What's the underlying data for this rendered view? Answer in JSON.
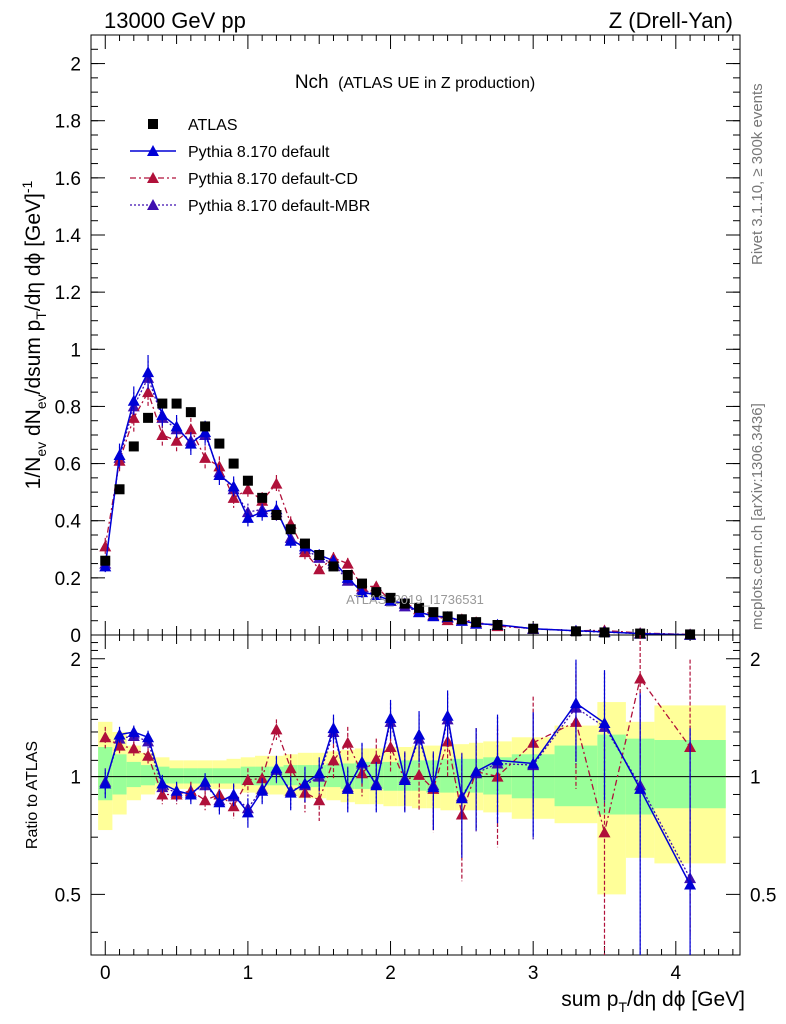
{
  "header": {
    "left": "13000 GeV pp",
    "right": "Z (Drell-Yan)"
  },
  "side_text": {
    "rivet": "Rivet 3.1.10, ≥ 300k events",
    "mcplots": "mcplots.cern.ch [arXiv:1306.3436]"
  },
  "watermark": "ATLAS_2019_I1736531",
  "colors": {
    "atlas": "#000000",
    "default": "#0000d6",
    "cd": "#b0103a",
    "mbr": "#3f0fb0",
    "band_yellow": "#ffff99",
    "band_green": "#99ff99"
  },
  "chart_data": [
    {
      "type": "scatter",
      "panel": "main",
      "title_main": "Nch",
      "title_sub": "(ATLAS UE in Z production)",
      "ylabel": "1/N_ev dN_ev/dsum p_T/dη dϕ [GeV]^-1",
      "ylabel_parts": [
        "1/N",
        "ev",
        " dN",
        "ev",
        "/dsum p",
        "T",
        "/dη dϕ  [GeV]",
        "-1"
      ],
      "xlim": [
        -0.1,
        4.45
      ],
      "ylim": [
        0,
        2.1
      ],
      "yticks": [
        0,
        0.2,
        0.4,
        0.6,
        0.8,
        1,
        1.2,
        1.4,
        1.6,
        1.8,
        2
      ],
      "ytick_labels": [
        "0",
        "0.2",
        "0.4",
        "0.6",
        "0.8",
        "1",
        "1.2",
        "1.4",
        "1.6",
        "1.8",
        "2"
      ],
      "legend": [
        "ATLAS",
        "Pythia 8.170 default",
        "Pythia 8.170 default-CD",
        "Pythia 8.170 default-MBR"
      ],
      "x": [
        0.0,
        0.1,
        0.2,
        0.3,
        0.4,
        0.5,
        0.6,
        0.7,
        0.8,
        0.9,
        1.0,
        1.1,
        1.2,
        1.3,
        1.4,
        1.5,
        1.6,
        1.7,
        1.8,
        1.9,
        2.0,
        2.1,
        2.2,
        2.3,
        2.4,
        2.5,
        2.6,
        2.75,
        3.0,
        3.3,
        3.5,
        3.75,
        4.1
      ],
      "series": [
        {
          "name": "ATLAS",
          "values": [
            0.26,
            0.51,
            0.66,
            0.76,
            0.81,
            0.81,
            0.78,
            0.73,
            0.67,
            0.6,
            0.54,
            0.48,
            0.42,
            0.37,
            0.32,
            0.28,
            0.24,
            0.21,
            0.18,
            0.15,
            0.13,
            0.11,
            0.095,
            0.08,
            0.065,
            0.055,
            0.045,
            0.035,
            0.022,
            0.013,
            0.009,
            0.005,
            0.002
          ]
        },
        {
          "name": "Pythia 8.170 default",
          "values": [
            0.24,
            0.63,
            0.82,
            0.92,
            0.77,
            0.73,
            0.67,
            0.71,
            0.56,
            0.52,
            0.41,
            0.43,
            0.44,
            0.33,
            0.31,
            0.28,
            0.26,
            0.2,
            0.15,
            0.14,
            0.12,
            0.11,
            0.08,
            0.066,
            0.063,
            0.05,
            0.04,
            0.036,
            0.022,
            0.015,
            0.011,
            0.005,
            0.001
          ],
          "errors": [
            0.02,
            0.04,
            0.05,
            0.06,
            0.04,
            0.04,
            0.04,
            0.04,
            0.035,
            0.035,
            0.03,
            0.03,
            0.03,
            0.025,
            0.025,
            0.02,
            0.02,
            0.02,
            0.02,
            0.015,
            0.015,
            0.015,
            0.012,
            0.01,
            0.01,
            0.01,
            0.008,
            0.008,
            0.006,
            0.005,
            0.004,
            0.003,
            0.002
          ]
        },
        {
          "name": "Pythia 8.170 default-CD",
          "values": [
            0.31,
            0.61,
            0.76,
            0.85,
            0.7,
            0.68,
            0.72,
            0.62,
            0.59,
            0.48,
            0.51,
            0.47,
            0.53,
            0.39,
            0.29,
            0.23,
            0.27,
            0.25,
            0.17,
            0.17,
            0.12,
            0.11,
            0.09,
            0.07,
            0.052,
            0.055,
            0.045,
            0.031,
            0.022,
            0.015,
            0.016,
            0.007,
            0.002
          ],
          "errors": [
            0.03,
            0.04,
            0.05,
            0.05,
            0.04,
            0.04,
            0.04,
            0.04,
            0.035,
            0.035,
            0.03,
            0.03,
            0.03,
            0.025,
            0.025,
            0.02,
            0.02,
            0.02,
            0.02,
            0.015,
            0.015,
            0.015,
            0.012,
            0.01,
            0.01,
            0.01,
            0.008,
            0.008,
            0.006,
            0.005,
            0.004,
            0.003,
            0.002
          ]
        },
        {
          "name": "Pythia 8.170 default-MBR",
          "values": [
            0.25,
            0.62,
            0.8,
            0.9,
            0.76,
            0.72,
            0.68,
            0.7,
            0.57,
            0.51,
            0.43,
            0.44,
            0.43,
            0.34,
            0.3,
            0.27,
            0.25,
            0.19,
            0.16,
            0.14,
            0.12,
            0.1,
            0.08,
            0.066,
            0.06,
            0.05,
            0.04,
            0.035,
            0.022,
            0.014,
            0.01,
            0.005,
            0.001
          ],
          "errors": [
            0.02,
            0.04,
            0.05,
            0.06,
            0.04,
            0.04,
            0.04,
            0.04,
            0.035,
            0.035,
            0.03,
            0.03,
            0.03,
            0.025,
            0.025,
            0.02,
            0.02,
            0.02,
            0.02,
            0.015,
            0.015,
            0.015,
            0.012,
            0.01,
            0.01,
            0.01,
            0.008,
            0.008,
            0.006,
            0.005,
            0.004,
            0.003,
            0.002
          ]
        }
      ]
    },
    {
      "type": "scatter",
      "panel": "ratio",
      "ylabel": "Ratio to ATLAS",
      "xlabel": "sum p_T/dη dϕ [GeV]",
      "xlabel_parts": [
        "sum p",
        "T",
        "/dη dϕ [GeV]"
      ],
      "xlim": [
        -0.1,
        4.45
      ],
      "ylim": [
        0.35,
        2.3
      ],
      "yticks": [
        0.5,
        1,
        2
      ],
      "ytick_labels": [
        "0.5",
        "1",
        "2"
      ],
      "xticks": [
        0,
        1,
        2,
        3,
        4
      ],
      "xtick_labels": [
        "0",
        "1",
        "2",
        "3",
        "4"
      ],
      "bands": [
        {
          "x0": -0.05,
          "x1": 0.05,
          "green": [
            0.87,
            1.19
          ],
          "yellow": [
            0.73,
            1.38
          ]
        },
        {
          "x0": 0.05,
          "x1": 0.15,
          "green": [
            0.9,
            1.14
          ],
          "yellow": [
            0.8,
            1.3
          ]
        },
        {
          "x0": 0.15,
          "x1": 0.25,
          "green": [
            0.94,
            1.09
          ],
          "yellow": [
            0.87,
            1.2
          ]
        },
        {
          "x0": 0.25,
          "x1": 0.35,
          "green": [
            0.95,
            1.07
          ],
          "yellow": [
            0.9,
            1.15
          ]
        },
        {
          "x0": 0.35,
          "x1": 0.45,
          "green": [
            0.96,
            1.06
          ],
          "yellow": [
            0.92,
            1.12
          ]
        },
        {
          "x0": 0.45,
          "x1": 0.55,
          "green": [
            0.96,
            1.05
          ],
          "yellow": [
            0.93,
            1.1
          ]
        },
        {
          "x0": 0.55,
          "x1": 0.65,
          "green": [
            0.96,
            1.05
          ],
          "yellow": [
            0.93,
            1.1
          ]
        },
        {
          "x0": 0.65,
          "x1": 0.75,
          "green": [
            0.96,
            1.05
          ],
          "yellow": [
            0.93,
            1.1
          ]
        },
        {
          "x0": 0.75,
          "x1": 0.85,
          "green": [
            0.96,
            1.05
          ],
          "yellow": [
            0.93,
            1.1
          ]
        },
        {
          "x0": 0.85,
          "x1": 0.95,
          "green": [
            0.96,
            1.05
          ],
          "yellow": [
            0.93,
            1.11
          ]
        },
        {
          "x0": 0.95,
          "x1": 1.05,
          "green": [
            0.95,
            1.06
          ],
          "yellow": [
            0.91,
            1.12
          ]
        },
        {
          "x0": 1.05,
          "x1": 1.15,
          "green": [
            0.95,
            1.06
          ],
          "yellow": [
            0.9,
            1.13
          ]
        },
        {
          "x0": 1.15,
          "x1": 1.25,
          "green": [
            0.95,
            1.06
          ],
          "yellow": [
            0.9,
            1.13
          ]
        },
        {
          "x0": 1.25,
          "x1": 1.35,
          "green": [
            0.95,
            1.07
          ],
          "yellow": [
            0.89,
            1.14
          ]
        },
        {
          "x0": 1.35,
          "x1": 1.45,
          "green": [
            0.94,
            1.07
          ],
          "yellow": [
            0.88,
            1.15
          ]
        },
        {
          "x0": 1.45,
          "x1": 1.55,
          "green": [
            0.94,
            1.07
          ],
          "yellow": [
            0.88,
            1.15
          ]
        },
        {
          "x0": 1.55,
          "x1": 1.65,
          "green": [
            0.94,
            1.08
          ],
          "yellow": [
            0.87,
            1.16
          ]
        },
        {
          "x0": 1.65,
          "x1": 1.75,
          "green": [
            0.93,
            1.08
          ],
          "yellow": [
            0.86,
            1.17
          ]
        },
        {
          "x0": 1.75,
          "x1": 1.85,
          "green": [
            0.93,
            1.09
          ],
          "yellow": [
            0.85,
            1.18
          ]
        },
        {
          "x0": 1.85,
          "x1": 1.95,
          "green": [
            0.93,
            1.09
          ],
          "yellow": [
            0.85,
            1.18
          ]
        },
        {
          "x0": 1.95,
          "x1": 2.05,
          "green": [
            0.92,
            1.09
          ],
          "yellow": [
            0.84,
            1.19
          ]
        },
        {
          "x0": 2.05,
          "x1": 2.15,
          "green": [
            0.92,
            1.1
          ],
          "yellow": [
            0.84,
            1.19
          ]
        },
        {
          "x0": 2.15,
          "x1": 2.25,
          "green": [
            0.92,
            1.1
          ],
          "yellow": [
            0.83,
            1.2
          ]
        },
        {
          "x0": 2.25,
          "x1": 2.35,
          "green": [
            0.91,
            1.1
          ],
          "yellow": [
            0.83,
            1.2
          ]
        },
        {
          "x0": 2.35,
          "x1": 2.45,
          "green": [
            0.91,
            1.11
          ],
          "yellow": [
            0.82,
            1.21
          ]
        },
        {
          "x0": 2.45,
          "x1": 2.55,
          "green": [
            0.91,
            1.11
          ],
          "yellow": [
            0.82,
            1.21
          ]
        },
        {
          "x0": 2.55,
          "x1": 2.65,
          "green": [
            0.91,
            1.11
          ],
          "yellow": [
            0.82,
            1.22
          ]
        },
        {
          "x0": 2.65,
          "x1": 2.85,
          "green": [
            0.9,
            1.12
          ],
          "yellow": [
            0.81,
            1.23
          ]
        },
        {
          "x0": 2.85,
          "x1": 3.15,
          "green": [
            0.88,
            1.14
          ],
          "yellow": [
            0.78,
            1.26
          ]
        },
        {
          "x0": 3.15,
          "x1": 3.45,
          "green": [
            0.84,
            1.2
          ],
          "yellow": [
            0.76,
            1.35
          ]
        },
        {
          "x0": 3.45,
          "x1": 3.65,
          "green": [
            0.8,
            1.28
          ],
          "yellow": [
            0.5,
            1.55
          ]
        },
        {
          "x0": 3.65,
          "x1": 3.85,
          "green": [
            0.8,
            1.25
          ],
          "yellow": [
            0.62,
            1.38
          ]
        },
        {
          "x0": 3.85,
          "x1": 4.35,
          "green": [
            0.83,
            1.24
          ],
          "yellow": [
            0.6,
            1.52
          ]
        }
      ],
      "series": [
        {
          "name": "Pythia 8.170 default",
          "values": [
            0.96,
            1.28,
            1.3,
            1.26,
            0.96,
            0.92,
            0.9,
            0.97,
            0.86,
            0.9,
            0.81,
            0.92,
            1.05,
            0.91,
            0.96,
            1.02,
            1.33,
            0.93,
            1.09,
            0.95,
            1.41,
            0.98,
            1.28,
            0.94,
            1.43,
            0.88,
            1.03,
            1.1,
            1.08,
            1.54,
            1.37,
            0.93,
            0.53
          ],
          "errors": [
            0.08,
            0.06,
            0.05,
            0.05,
            0.05,
            0.05,
            0.05,
            0.05,
            0.06,
            0.06,
            0.07,
            0.07,
            0.08,
            0.09,
            0.1,
            0.1,
            0.11,
            0.12,
            0.13,
            0.14,
            0.16,
            0.17,
            0.19,
            0.21,
            0.23,
            0.26,
            0.3,
            0.34,
            0.38,
            0.45,
            0.5,
            0.7,
            0.8
          ]
        },
        {
          "name": "Pythia 8.170 default-CD",
          "values": [
            1.26,
            1.2,
            1.18,
            1.13,
            0.9,
            0.9,
            0.92,
            0.87,
            0.9,
            0.84,
            0.98,
            0.99,
            1.32,
            1.05,
            0.91,
            0.87,
            1.1,
            1.22,
            1.02,
            1.11,
            1.19,
            0.98,
            1.01,
            0.93,
            1.23,
            0.8,
            1.03,
            1.0,
            1.22,
            1.38,
            0.72,
            1.78,
            1.19
          ],
          "errors": [
            0.08,
            0.06,
            0.05,
            0.05,
            0.05,
            0.05,
            0.05,
            0.05,
            0.06,
            0.06,
            0.07,
            0.07,
            0.08,
            0.09,
            0.1,
            0.1,
            0.11,
            0.12,
            0.13,
            0.14,
            0.16,
            0.17,
            0.19,
            0.21,
            0.23,
            0.26,
            0.3,
            0.34,
            0.38,
            0.45,
            0.5,
            0.7,
            0.8
          ]
        },
        {
          "name": "Pythia 8.170 default-MBR",
          "values": [
            0.97,
            1.25,
            1.27,
            1.23,
            0.94,
            0.91,
            0.91,
            0.95,
            0.87,
            0.89,
            0.83,
            0.93,
            1.04,
            0.92,
            0.95,
            1.0,
            1.3,
            0.94,
            1.08,
            0.96,
            1.38,
            0.99,
            1.25,
            0.95,
            1.4,
            0.89,
            1.02,
            1.08,
            1.07,
            1.5,
            1.34,
            0.95,
            0.55
          ],
          "errors": [
            0.08,
            0.06,
            0.05,
            0.05,
            0.05,
            0.05,
            0.05,
            0.05,
            0.06,
            0.06,
            0.07,
            0.07,
            0.08,
            0.09,
            0.1,
            0.1,
            0.11,
            0.12,
            0.13,
            0.14,
            0.16,
            0.17,
            0.19,
            0.21,
            0.23,
            0.26,
            0.3,
            0.34,
            0.38,
            0.45,
            0.5,
            0.7,
            0.8
          ]
        }
      ]
    }
  ]
}
